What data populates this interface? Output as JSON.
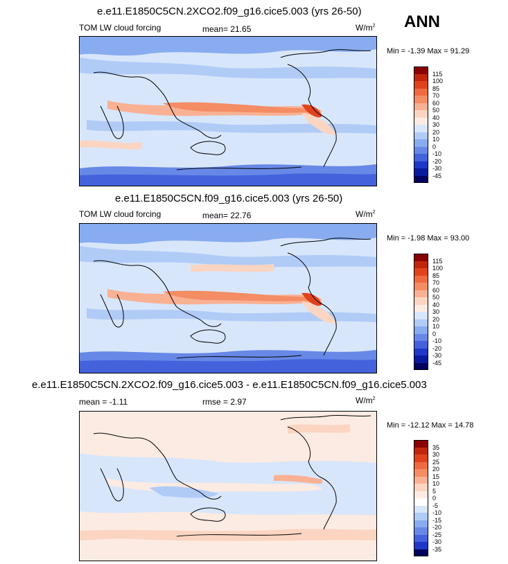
{
  "season": "ANN",
  "panels": [
    {
      "title": "e.e11.E1850C5CN.2XCO2.f09_g16.cice5.003 (yrs 26-50)",
      "left_label": "TOM LW cloud forcing",
      "center_label": "mean=  21.65",
      "units": "W/m",
      "units_sup": "2",
      "minmax": "Min =  -1.39 Max =  91.29",
      "legend": {
        "labels": [
          "115",
          "100",
          "85",
          "70",
          "60",
          "50",
          "40",
          "30",
          "20",
          "10",
          "0",
          "-10",
          "-20",
          "-30",
          "-45"
        ],
        "colors": [
          "#8b0000",
          "#c0260c",
          "#e0431c",
          "#ef6a40",
          "#f48c64",
          "#f9b193",
          "#fbd5c2",
          "#fcebe2",
          "#d8e6fb",
          "#b0cbf6",
          "#88acef",
          "#6788e6",
          "#4462dc",
          "#2038c8",
          "#0a1a9c",
          "#00005e"
        ]
      }
    },
    {
      "title": "e.e11.E1850C5CN.f09_g16.cice5.003 (yrs 26-50)",
      "left_label": "TOM LW cloud forcing",
      "center_label": "mean=  22.76",
      "units": "W/m",
      "units_sup": "2",
      "minmax": "Min =  -1.98 Max =  93.00",
      "legend": {
        "labels": [
          "115",
          "100",
          "85",
          "70",
          "60",
          "50",
          "40",
          "30",
          "20",
          "10",
          "0",
          "-10",
          "-20",
          "-30",
          "-45"
        ],
        "colors": [
          "#8b0000",
          "#c0260c",
          "#e0431c",
          "#ef6a40",
          "#f48c64",
          "#f9b193",
          "#fbd5c2",
          "#fcebe2",
          "#d8e6fb",
          "#b0cbf6",
          "#88acef",
          "#6788e6",
          "#4462dc",
          "#2038c8",
          "#0a1a9c",
          "#00005e"
        ]
      }
    },
    {
      "title": "e.e11.E1850C5CN.2XCO2.f09_g16.cice5.003 - e.e11.E1850C5CN.f09_g16.cice5.003",
      "left_label": "mean =  -1.11",
      "center_label": "rmse =   2.97",
      "units": "W/m",
      "units_sup": "2",
      "minmax": "Min = -12.12 Max =  14.78",
      "legend": {
        "labels": [
          "35",
          "30",
          "25",
          "20",
          "15",
          "10",
          "5",
          "0",
          "-5",
          "-10",
          "-15",
          "-20",
          "-25",
          "-30",
          "-35"
        ],
        "colors": [
          "#8b0000",
          "#c0260c",
          "#e0431c",
          "#ef6a40",
          "#f48c64",
          "#f9b193",
          "#fbd5c2",
          "#fcebe2",
          "#ffffff",
          "#d8e6fb",
          "#b0cbf6",
          "#88acef",
          "#6788e6",
          "#4462dc",
          "#2038c8",
          "#00005e"
        ]
      }
    }
  ]
}
